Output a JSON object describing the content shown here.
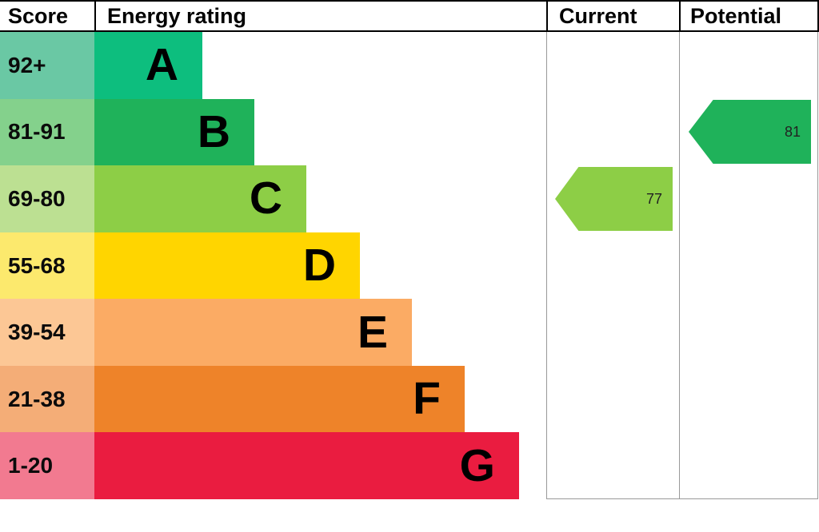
{
  "header": {
    "score": "Score",
    "energy_rating": "Energy rating",
    "current": "Current",
    "potential": "Potential"
  },
  "bands": [
    {
      "score": "92+",
      "letter": "A",
      "bar_color": "#0dbe7e",
      "score_color": "#6ac8a4"
    },
    {
      "score": "81-91",
      "letter": "B",
      "bar_color": "#1fb25a",
      "score_color": "#84d18c"
    },
    {
      "score": "69-80",
      "letter": "C",
      "bar_color": "#8dce46",
      "score_color": "#bce092"
    },
    {
      "score": "55-68",
      "letter": "D",
      "bar_color": "#ffd500",
      "score_color": "#fce96d"
    },
    {
      "score": "39-54",
      "letter": "E",
      "bar_color": "#fbab64",
      "score_color": "#fcc795"
    },
    {
      "score": "21-38",
      "letter": "F",
      "bar_color": "#ee8329",
      "score_color": "#f4ad77"
    },
    {
      "score": "1-20",
      "letter": "G",
      "bar_color": "#ea1c40",
      "score_color": "#f27a90"
    }
  ],
  "current": {
    "value": "77",
    "band": "C",
    "color": "#8dce46"
  },
  "potential": {
    "value": "81",
    "band": "B",
    "color": "#1fb25a"
  },
  "chart_data": {
    "type": "table",
    "title": "Energy rating",
    "columns": [
      "Score",
      "Energy rating",
      "Current",
      "Potential"
    ],
    "bands": [
      {
        "score_range": "92+",
        "rating": "A"
      },
      {
        "score_range": "81-91",
        "rating": "B"
      },
      {
        "score_range": "69-80",
        "rating": "C"
      },
      {
        "score_range": "55-68",
        "rating": "D"
      },
      {
        "score_range": "39-54",
        "rating": "E"
      },
      {
        "score_range": "21-38",
        "rating": "F"
      },
      {
        "score_range": "1-20",
        "rating": "G"
      }
    ],
    "current": {
      "value": 77,
      "band": "C"
    },
    "potential": {
      "value": 81,
      "band": "B"
    }
  }
}
